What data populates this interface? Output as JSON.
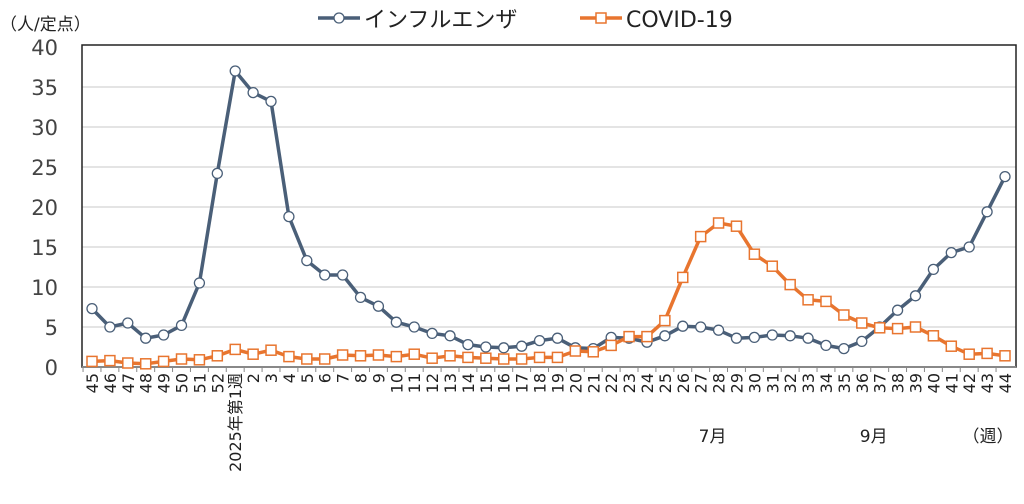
{
  "chart_data": {
    "type": "line",
    "ylabel": "（人/定点）",
    "xlabel": "（週）",
    "ylim": [
      0,
      40
    ],
    "yticks": [
      0,
      5,
      10,
      15,
      20,
      25,
      30,
      35,
      40
    ],
    "grid": true,
    "legend_position": "top-center",
    "categories": [
      "45",
      "46",
      "47",
      "48",
      "49",
      "50",
      "51",
      "52",
      "2025年第1週",
      "2",
      "3",
      "4",
      "5",
      "6",
      "7",
      "8",
      "9",
      "10",
      "11",
      "12",
      "13",
      "14",
      "15",
      "16",
      "17",
      "18",
      "19",
      "20",
      "21",
      "22",
      "23",
      "24",
      "25",
      "26",
      "27",
      "28",
      "29",
      "30",
      "31",
      "32",
      "33",
      "34",
      "35",
      "36",
      "37",
      "38",
      "39",
      "40",
      "41",
      "42",
      "43",
      "44"
    ],
    "month_labels": [
      {
        "label": "7月",
        "category_index": 35
      },
      {
        "label": "9月",
        "category_index": 44
      }
    ],
    "series": [
      {
        "name": "インフルエンザ",
        "color": "#4a5f78",
        "marker": "circle",
        "values": [
          7.3,
          5.0,
          5.5,
          3.6,
          4.0,
          5.2,
          10.5,
          24.2,
          37.0,
          34.3,
          33.2,
          18.8,
          13.3,
          11.5,
          11.5,
          8.7,
          7.6,
          5.6,
          5.0,
          4.2,
          3.9,
          2.8,
          2.5,
          2.4,
          2.6,
          3.3,
          3.6,
          2.4,
          2.3,
          3.7,
          3.6,
          3.1,
          3.9,
          5.1,
          5.0,
          4.6,
          3.6,
          3.7,
          4.0,
          3.9,
          3.6,
          2.7,
          2.3,
          3.2,
          5.0,
          7.1,
          8.9,
          12.2,
          14.3,
          15.0,
          19.4,
          23.8
        ]
      },
      {
        "name": "COVID-19",
        "color": "#e8752f",
        "marker": "square",
        "values": [
          0.7,
          0.8,
          0.5,
          0.4,
          0.7,
          1.0,
          0.9,
          1.4,
          2.2,
          1.6,
          2.1,
          1.3,
          1.0,
          1.0,
          1.5,
          1.4,
          1.5,
          1.3,
          1.6,
          1.1,
          1.4,
          1.2,
          1.1,
          1.0,
          1.0,
          1.2,
          1.2,
          2.0,
          1.9,
          2.7,
          3.8,
          3.8,
          5.8,
          11.2,
          16.3,
          18.0,
          17.6,
          14.1,
          12.6,
          10.3,
          8.4,
          8.2,
          6.5,
          5.5,
          4.9,
          4.8,
          5.0,
          3.9,
          2.6,
          1.6,
          1.7,
          1.4
        ]
      }
    ]
  }
}
